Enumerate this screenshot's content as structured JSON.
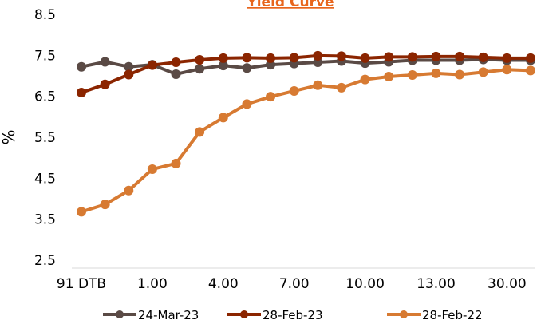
{
  "chart_data": {
    "type": "line",
    "title": "Yield Curve",
    "ylabel": "%",
    "xlabel": "",
    "ylim": [
      2.5,
      8.5
    ],
    "yticks": [
      "2.5",
      "3.5",
      "4.5",
      "5.5",
      "6.5",
      "7.5",
      "8.5"
    ],
    "x_tick_labels": [
      "91 DTB",
      "1.00",
      "4.00",
      "7.00",
      "10.00",
      "13.00",
      "30.00"
    ],
    "x_tick_positions": [
      0,
      3,
      6,
      9,
      12,
      15,
      18
    ],
    "legend_position": "bottom",
    "grid": false,
    "series": [
      {
        "name": "24-Mar-23",
        "color": "#5a4a45",
        "values": [
          7.22,
          7.34,
          7.22,
          7.27,
          7.04,
          7.17,
          7.25,
          7.19,
          7.27,
          7.3,
          7.33,
          7.36,
          7.31,
          7.34,
          7.38,
          7.38,
          7.38,
          7.4,
          7.38,
          7.38
        ]
      },
      {
        "name": "28-Feb-23",
        "color": "#8b2500",
        "values": [
          6.59,
          6.79,
          7.03,
          7.26,
          7.33,
          7.39,
          7.43,
          7.44,
          7.43,
          7.44,
          7.49,
          7.48,
          7.43,
          7.46,
          7.46,
          7.47,
          7.47,
          7.45,
          7.43,
          7.43
        ]
      },
      {
        "name": "28-Feb-22",
        "color": "#d77a32",
        "values": [
          3.68,
          3.86,
          4.2,
          4.72,
          4.86,
          5.63,
          5.98,
          6.31,
          6.49,
          6.63,
          6.77,
          6.71,
          6.91,
          6.98,
          7.02,
          7.06,
          7.03,
          7.09,
          7.15,
          7.13
        ]
      }
    ]
  }
}
